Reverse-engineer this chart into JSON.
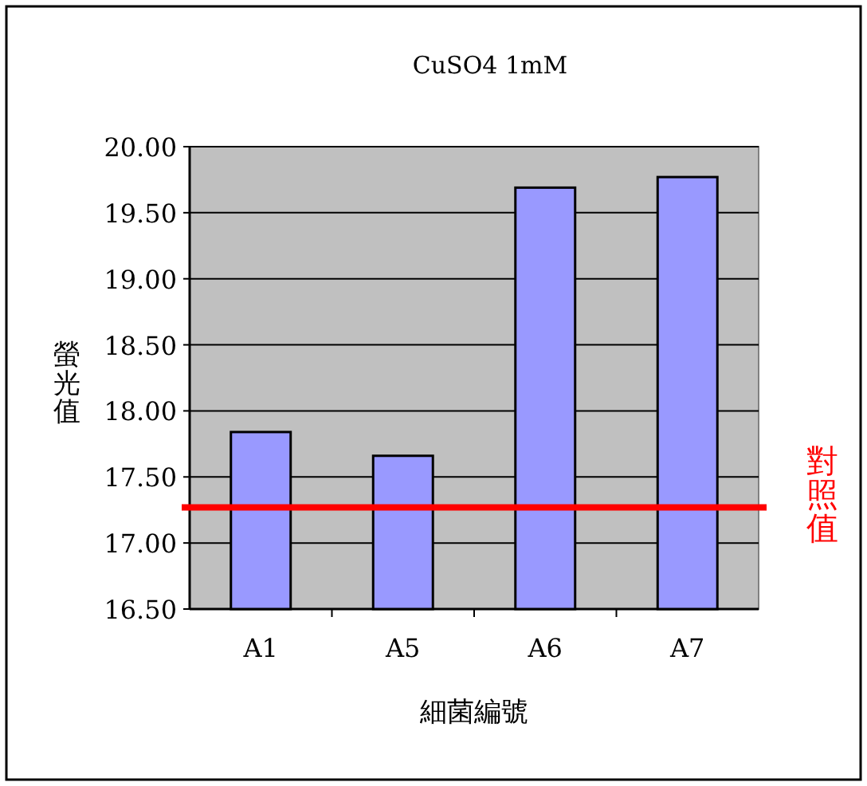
{
  "chart_data": {
    "type": "bar",
    "title": "CuSO4 1mM",
    "xlabel": "細菌編號",
    "ylabel": "螢光值",
    "categories": [
      "A1",
      "A5",
      "A6",
      "A7"
    ],
    "values": [
      17.84,
      17.66,
      19.69,
      19.77
    ],
    "color": "#9999ff",
    "ylim": [
      16.5,
      20.0
    ],
    "yticks": [
      {
        "value": 16.5,
        "label": "16.50"
      },
      {
        "value": 17.0,
        "label": "17.00"
      },
      {
        "value": 17.5,
        "label": "17.50"
      },
      {
        "value": 18.0,
        "label": "18.00"
      },
      {
        "value": 18.5,
        "label": "18.50"
      },
      {
        "value": 19.0,
        "label": "19.00"
      },
      {
        "value": 19.5,
        "label": "19.50"
      },
      {
        "value": 20.0,
        "label": "20.00"
      }
    ],
    "grid": "y",
    "ref_lines": [
      {
        "axis": "y",
        "value": 17.27,
        "label": "對照值",
        "color": "#ff0000"
      }
    ]
  }
}
